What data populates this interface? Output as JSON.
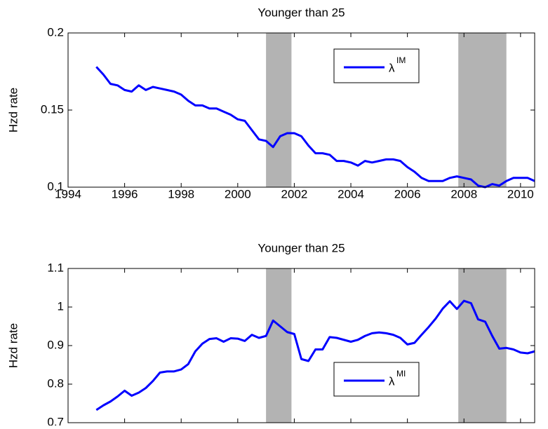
{
  "chart_data": [
    {
      "type": "line",
      "title": "Younger than 25",
      "ylabel": "Hzd rate",
      "xlim": [
        1994,
        2010.5
      ],
      "xticks": [
        1994,
        1996,
        1998,
        2000,
        2002,
        2004,
        2006,
        2008,
        2010
      ],
      "ylim": [
        0.1,
        0.2
      ],
      "yticks": [
        0.1,
        0.15,
        0.2
      ],
      "legend": "upper right",
      "shaded": [
        [
          2001,
          2001.9
        ],
        [
          2007.8,
          2009.5
        ]
      ],
      "shade_color": "#b3b3b3",
      "x": [
        1995,
        1995.25,
        1995.5,
        1995.75,
        1996,
        1996.25,
        1996.5,
        1996.75,
        1997,
        1997.25,
        1997.5,
        1997.75,
        1998,
        1998.25,
        1998.5,
        1998.75,
        1999,
        1999.25,
        1999.5,
        1999.75,
        2000,
        2000.25,
        2000.5,
        2000.75,
        2001,
        2001.25,
        2001.5,
        2001.75,
        2002,
        2002.25,
        2002.5,
        2002.75,
        2003,
        2003.25,
        2003.5,
        2003.75,
        2004,
        2004.25,
        2004.5,
        2004.75,
        2005,
        2005.25,
        2005.5,
        2005.75,
        2006,
        2006.25,
        2006.5,
        2006.75,
        2007,
        2007.25,
        2007.5,
        2007.75,
        2008,
        2008.25,
        2008.5,
        2008.75,
        2009,
        2009.25,
        2009.5,
        2009.75,
        2010,
        2010.25,
        2010.5
      ],
      "series": [
        {
          "name": "λ",
          "superscript": "IM",
          "color": "#0000ff",
          "values": [
            0.178,
            0.173,
            0.167,
            0.166,
            0.163,
            0.162,
            0.166,
            0.163,
            0.165,
            0.164,
            0.163,
            0.162,
            0.16,
            0.156,
            0.153,
            0.153,
            0.151,
            0.151,
            0.149,
            0.147,
            0.144,
            0.143,
            0.137,
            0.131,
            0.13,
            0.126,
            0.133,
            0.135,
            0.135,
            0.133,
            0.127,
            0.122,
            0.122,
            0.121,
            0.117,
            0.117,
            0.116,
            0.114,
            0.117,
            0.116,
            0.117,
            0.118,
            0.118,
            0.117,
            0.113,
            0.11,
            0.106,
            0.104,
            0.104,
            0.104,
            0.106,
            0.107,
            0.106,
            0.105,
            0.101,
            0.1,
            0.102,
            0.101,
            0.104,
            0.106,
            0.106,
            0.106,
            0.104
          ]
        }
      ]
    },
    {
      "type": "line",
      "title": "Younger than 25",
      "ylabel": "Hzd rate",
      "xlim": [
        1994,
        2010.5
      ],
      "xticks": [
        1994,
        1996,
        1998,
        2000,
        2002,
        2004,
        2006,
        2008,
        2010
      ],
      "ylim": [
        0.7,
        1.1
      ],
      "yticks": [
        0.7,
        0.8,
        0.9,
        1,
        1.1
      ],
      "legend": "lower right",
      "shaded": [
        [
          2001,
          2001.9
        ],
        [
          2007.8,
          2009.5
        ]
      ],
      "shade_color": "#b3b3b3",
      "x": [
        1995,
        1995.25,
        1995.5,
        1995.75,
        1996,
        1996.25,
        1996.5,
        1996.75,
        1997,
        1997.25,
        1997.5,
        1997.75,
        1998,
        1998.25,
        1998.5,
        1998.75,
        1999,
        1999.25,
        1999.5,
        1999.75,
        2000,
        2000.25,
        2000.5,
        2000.75,
        2001,
        2001.25,
        2001.5,
        2001.75,
        2002,
        2002.25,
        2002.5,
        2002.75,
        2003,
        2003.25,
        2003.5,
        2003.75,
        2004,
        2004.25,
        2004.5,
        2004.75,
        2005,
        2005.25,
        2005.5,
        2005.75,
        2006,
        2006.25,
        2006.5,
        2006.75,
        2007,
        2007.25,
        2007.5,
        2007.75,
        2008,
        2008.25,
        2008.5,
        2008.75,
        2009,
        2009.25,
        2009.5,
        2009.75,
        2010,
        2010.25,
        2010.5
      ],
      "series": [
        {
          "name": "λ",
          "superscript": "MI",
          "color": "#0000ff",
          "values": [
            0.733,
            0.745,
            0.755,
            0.768,
            0.783,
            0.77,
            0.778,
            0.79,
            0.808,
            0.83,
            0.833,
            0.833,
            0.838,
            0.852,
            0.885,
            0.905,
            0.917,
            0.919,
            0.91,
            0.919,
            0.918,
            0.912,
            0.928,
            0.92,
            0.925,
            0.965,
            0.95,
            0.935,
            0.93,
            0.865,
            0.86,
            0.89,
            0.89,
            0.922,
            0.92,
            0.915,
            0.91,
            0.915,
            0.925,
            0.932,
            0.934,
            0.932,
            0.928,
            0.92,
            0.903,
            0.907,
            0.928,
            0.948,
            0.97,
            0.996,
            1.015,
            0.995,
            1.016,
            1.01,
            0.968,
            0.962,
            0.925,
            0.892,
            0.894,
            0.89,
            0.882,
            0.88,
            0.885
          ]
        }
      ]
    }
  ]
}
